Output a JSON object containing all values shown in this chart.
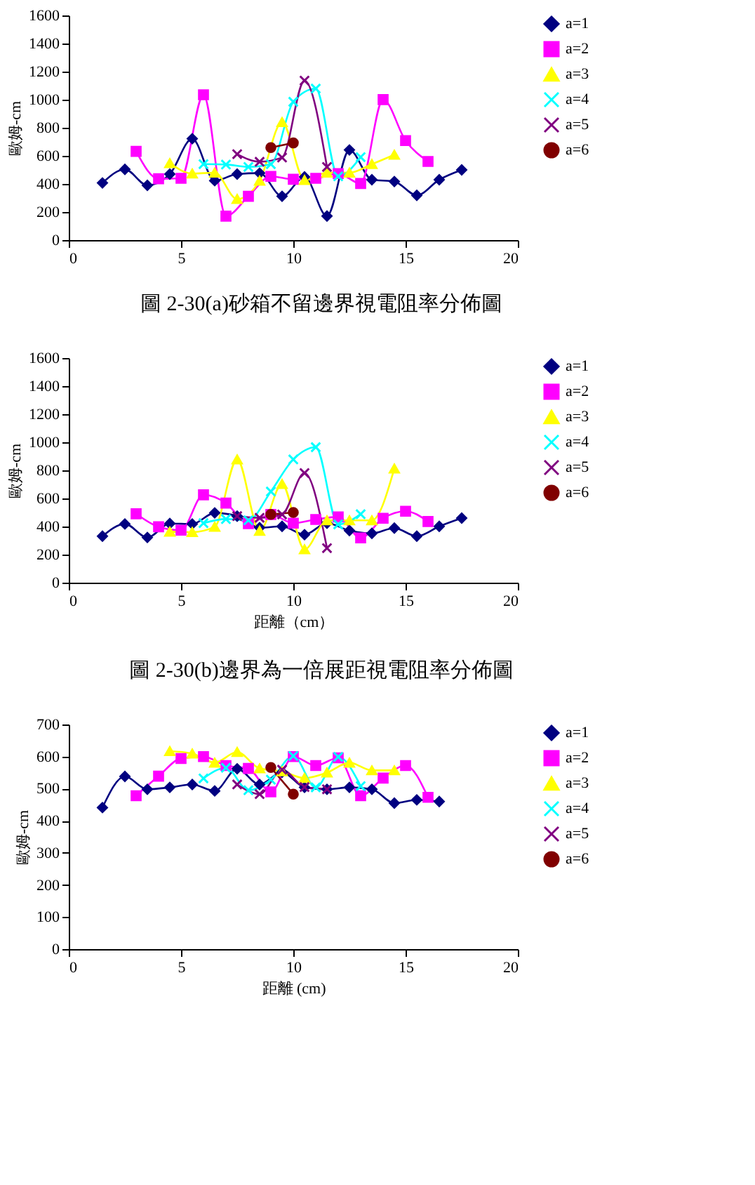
{
  "chart_data": [
    {
      "type": "line",
      "ylabel": "歐姆-cm",
      "xlim": [
        0,
        20
      ],
      "xticks": [
        0,
        5,
        10,
        15,
        20
      ],
      "ylim": [
        0,
        1600
      ],
      "yticks": [
        0,
        200,
        400,
        600,
        800,
        1000,
        1200,
        1400,
        1600
      ],
      "grid": false,
      "legend": "right",
      "annotations": [
        "圖  2-30(a)砂箱不留邊界視電阻率分佈圖"
      ],
      "series": [
        {
          "name": "a=1",
          "color": "#000080",
          "marker": "diamond",
          "x": [
            1.5,
            2.5,
            3.5,
            4.5,
            5.5,
            6.5,
            7.5,
            8.5,
            9.5,
            10.5,
            11.5,
            12.5,
            13.5,
            14.5,
            15.5,
            16.5,
            17.5
          ],
          "values": [
            407,
            504,
            390,
            470,
            722,
            423,
            470,
            477,
            312,
            450,
            171,
            642,
            430,
            417,
            319,
            430,
            500
          ]
        },
        {
          "name": "a=2",
          "color": "#ff00ff",
          "marker": "square",
          "x": [
            3,
            4,
            5,
            6,
            7,
            8,
            9,
            10,
            11,
            12,
            13,
            14,
            15,
            16
          ],
          "values": [
            632,
            437,
            440,
            1035,
            171,
            312,
            454,
            433,
            440,
            474,
            403,
            1001,
            709,
            560
          ]
        },
        {
          "name": "a=3",
          "color": "#ffff00",
          "marker": "triangle",
          "x": [
            4.5,
            5.5,
            6.5,
            7.5,
            8.5,
            9.5,
            10.5,
            11.5,
            12.5,
            13.5,
            14.5
          ],
          "values": [
            548,
            474,
            480,
            292,
            423,
            840,
            427,
            480,
            480,
            541,
            608
          ]
        },
        {
          "name": "a=4",
          "color": "#00ffff",
          "marker": "cross",
          "x": [
            6,
            7,
            8,
            9,
            10,
            11,
            12,
            13
          ],
          "values": [
            541,
            538,
            521,
            541,
            985,
            1079,
            454,
            591
          ]
        },
        {
          "name": "a=5",
          "color": "#800080",
          "marker": "cross",
          "x": [
            7.5,
            8.5,
            9.5,
            10.5,
            11.5
          ],
          "values": [
            612,
            558,
            588,
            1136,
            521
          ]
        },
        {
          "name": "a=6",
          "color": "#800000",
          "marker": "circle",
          "x": [
            9,
            10
          ],
          "values": [
            659,
            692
          ]
        }
      ]
    },
    {
      "type": "line",
      "ylabel": "歐姆-cm",
      "xlabel": "距離（cm）",
      "xlim": [
        0,
        20
      ],
      "xticks": [
        0,
        5,
        10,
        15,
        20
      ],
      "ylim": [
        0,
        1600
      ],
      "yticks": [
        0,
        200,
        400,
        600,
        800,
        1000,
        1200,
        1400,
        1600
      ],
      "grid": false,
      "legend": "right",
      "annotations": [
        "圖 2-30(b)邊界為一倍展距視電阻率分佈圖"
      ],
      "series": [
        {
          "name": "a=1",
          "color": "#000080",
          "marker": "diamond",
          "x": [
            1.5,
            2.5,
            3.5,
            4.5,
            5.5,
            6.5,
            7.5,
            8.5,
            9.5,
            10.5,
            11.5,
            12.5,
            13.5,
            14.5,
            15.5,
            16.5,
            17.5
          ],
          "values": [
            331,
            418,
            322,
            421,
            418,
            497,
            474,
            392,
            401,
            342,
            424,
            371,
            351,
            389,
            331,
            401,
            460
          ]
        },
        {
          "name": "a=2",
          "color": "#ff00ff",
          "marker": "square",
          "x": [
            3,
            4,
            5,
            6,
            7,
            8,
            9,
            10,
            11,
            12,
            13,
            14,
            15,
            16
          ],
          "values": [
            491,
            398,
            374,
            626,
            567,
            421,
            486,
            424,
            450,
            468,
            319,
            459,
            509,
            436
          ]
        },
        {
          "name": "a=3",
          "color": "#ffff00",
          "marker": "triangle",
          "x": [
            4.5,
            5.5,
            6.5,
            7.5,
            8.5,
            9.5,
            10.5,
            11.5,
            12.5,
            13.5,
            14.5
          ],
          "values": [
            363,
            360,
            398,
            878,
            369,
            702,
            237,
            444,
            444,
            444,
            813
          ]
        },
        {
          "name": "a=4",
          "color": "#00ffff",
          "marker": "cross",
          "x": [
            6,
            7,
            8,
            9,
            10,
            11,
            12,
            13
          ],
          "values": [
            424,
            453,
            444,
            649,
            878,
            965,
            415,
            488
          ]
        },
        {
          "name": "a=5",
          "color": "#800080",
          "marker": "cross",
          "x": [
            7.5,
            8.5,
            9.5,
            10.5,
            11.5
          ],
          "values": [
            474,
            462,
            486,
            781,
            246
          ]
        },
        {
          "name": "a=6",
          "color": "#800000",
          "marker": "circle",
          "x": [
            9,
            10
          ],
          "values": [
            486,
            500
          ]
        }
      ]
    },
    {
      "type": "line",
      "ylabel": "歐姆-cm",
      "xlabel": "距離 (cm)",
      "xlim": [
        0,
        20
      ],
      "xticks": [
        0,
        5,
        10,
        15,
        20
      ],
      "ylim": [
        0,
        700
      ],
      "yticks": [
        0,
        100,
        200,
        300,
        400,
        500,
        600,
        700
      ],
      "grid": false,
      "legend": "right",
      "series": [
        {
          "name": "a=1",
          "color": "#000080",
          "marker": "diamond",
          "x": [
            1.5,
            2.5,
            3.5,
            4.5,
            5.5,
            6.5,
            7.5,
            8.5,
            9.5,
            10.5,
            11.5,
            12.5,
            13.5,
            14.5,
            15.5,
            16.5
          ],
          "values": [
            441,
            538,
            498,
            504,
            513,
            493,
            562,
            513,
            551,
            504,
            498,
            504,
            498,
            455,
            465,
            460
          ]
        },
        {
          "name": "a=2",
          "color": "#ff00ff",
          "marker": "square",
          "x": [
            3,
            4,
            5,
            6,
            7,
            8,
            9,
            10,
            11,
            12,
            13,
            14,
            15,
            16
          ],
          "values": [
            478,
            539,
            594,
            600,
            572,
            563,
            490,
            600,
            572,
            596,
            478,
            533,
            572,
            473
          ]
        },
        {
          "name": "a=3",
          "color": "#ffff00",
          "marker": "triangle",
          "x": [
            4.5,
            5.5,
            6.5,
            7.5,
            8.5,
            9.5,
            10.5,
            11.5,
            12.5,
            13.5,
            14.5
          ],
          "values": [
            617,
            609,
            581,
            614,
            563,
            554,
            533,
            550,
            581,
            557,
            557
          ]
        },
        {
          "name": "a=4",
          "color": "#00ffff",
          "marker": "cross",
          "x": [
            6,
            7,
            8,
            9,
            10,
            11,
            12,
            13
          ],
          "values": [
            532,
            565,
            495,
            528,
            602,
            504,
            599,
            508
          ]
        },
        {
          "name": "a=5",
          "color": "#800080",
          "marker": "cross",
          "x": [
            7.5,
            8.5,
            9.5,
            10.5,
            11.5
          ],
          "values": [
            513,
            483,
            559,
            505,
            498
          ]
        },
        {
          "name": "a=6",
          "color": "#800000",
          "marker": "circle",
          "x": [
            9,
            10
          ],
          "values": [
            566,
            483
          ]
        }
      ]
    }
  ]
}
